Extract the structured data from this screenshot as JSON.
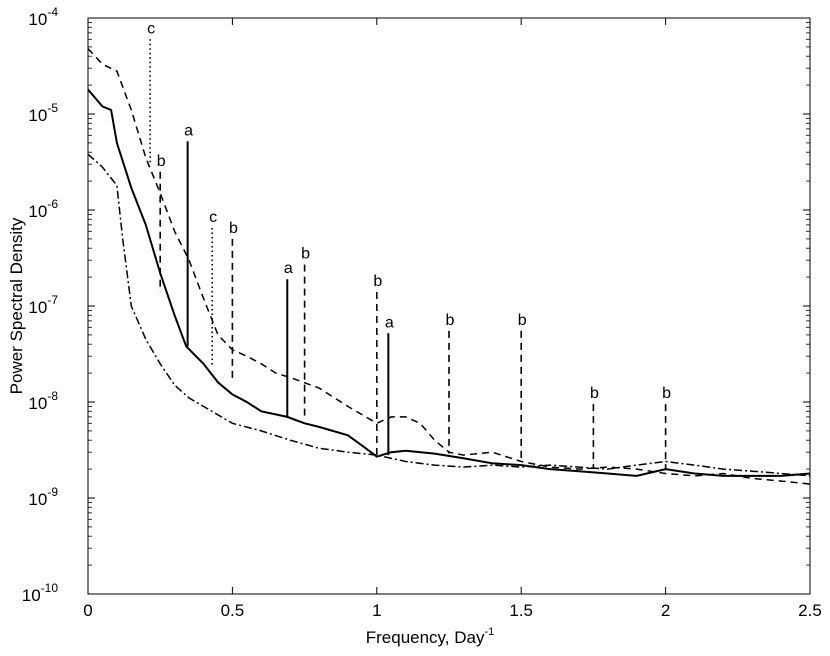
{
  "chart_data": {
    "type": "line",
    "title": "",
    "xlabel": "Frequency, Day",
    "xlabel_superscript": "-1",
    "ylabel": "Power Spectral Density",
    "xlim": [
      0,
      2.5
    ],
    "ylim_exponents": [
      -10,
      -4
    ],
    "yscale": "log",
    "grid": false,
    "x_ticks": [
      0,
      0.5,
      1,
      1.5,
      2,
      2.5
    ],
    "x_tick_labels": [
      "0",
      "0.5",
      "1",
      "1.5",
      "2",
      "2.5"
    ],
    "y_ticks": [
      -10,
      -9,
      -8,
      -7,
      -6,
      -5,
      -4
    ],
    "y_tick_base": "10",
    "y_tick_exponents": [
      "-10",
      "-9",
      "-8",
      "-7",
      "-6",
      "-5",
      "-4"
    ],
    "series": [
      {
        "name": "solid",
        "style": "solid",
        "x": [
          0,
          0.05,
          0.08,
          0.1,
          0.15,
          0.2,
          0.25,
          0.3,
          0.34,
          0.4,
          0.45,
          0.5,
          0.55,
          0.6,
          0.69,
          0.75,
          0.8,
          0.9,
          0.95,
          1.0,
          1.05,
          1.1,
          1.2,
          1.3,
          1.4,
          1.5,
          1.6,
          1.7,
          1.8,
          1.9,
          2.0,
          2.1,
          2.2,
          2.3,
          2.4,
          2.5
        ],
        "values": [
          1.8e-05,
          1.2e-05,
          1.1e-05,
          5e-06,
          1.7e-06,
          7e-07,
          2.2e-07,
          8e-08,
          3.8e-08,
          2.5e-08,
          1.6e-08,
          1.2e-08,
          1e-08,
          8e-09,
          7e-09,
          6e-09,
          5.5e-09,
          4.5e-09,
          3.5e-09,
          2.7e-09,
          3e-09,
          3.1e-09,
          2.9e-09,
          2.6e-09,
          2.3e-09,
          2.2e-09,
          2e-09,
          1.9e-09,
          1.8e-09,
          1.7e-09,
          2e-09,
          1.8e-09,
          1.7e-09,
          1.7e-09,
          1.7e-09,
          1.8e-09
        ]
      },
      {
        "name": "dashed",
        "style": "dashed",
        "x": [
          0,
          0.05,
          0.1,
          0.15,
          0.2,
          0.25,
          0.3,
          0.35,
          0.4,
          0.45,
          0.5,
          0.55,
          0.6,
          0.65,
          0.7,
          0.8,
          0.9,
          1.0,
          1.05,
          1.1,
          1.15,
          1.2,
          1.25,
          1.3,
          1.4,
          1.5,
          1.6,
          1.7,
          1.8,
          1.9,
          2.0,
          2.1,
          2.2,
          2.3,
          2.4,
          2.5
        ],
        "values": [
          4.8e-05,
          3.3e-05,
          2.8e-05,
          1.1e-05,
          3.5e-06,
          1.5e-06,
          6e-07,
          3e-07,
          1.2e-07,
          5e-08,
          3.5e-08,
          3e-08,
          2.5e-08,
          2e-08,
          1.8e-08,
          1.4e-08,
          9e-09,
          6e-09,
          7e-09,
          7e-09,
          6e-09,
          4e-09,
          3e-09,
          2.8e-09,
          3e-09,
          2.4e-09,
          2.1e-09,
          2e-09,
          2.1e-09,
          2e-09,
          1.8e-09,
          1.7e-09,
          1.8e-09,
          1.6e-09,
          1.5e-09,
          1.4e-09
        ]
      },
      {
        "name": "dash-dot",
        "style": "dashdot",
        "x": [
          0,
          0.05,
          0.1,
          0.12,
          0.15,
          0.2,
          0.25,
          0.3,
          0.35,
          0.4,
          0.5,
          0.6,
          0.7,
          0.8,
          0.9,
          1.0,
          1.1,
          1.2,
          1.3,
          1.4,
          1.5,
          1.6,
          1.7,
          1.8,
          1.9,
          2.0,
          2.1,
          2.2,
          2.3,
          2.4,
          2.5
        ],
        "values": [
          3.8e-06,
          2.8e-06,
          1.8e-06,
          5e-07,
          1e-07,
          4.5e-08,
          2.5e-08,
          1.5e-08,
          1.1e-08,
          9e-09,
          6e-09,
          5e-09,
          4e-09,
          3.3e-09,
          3e-09,
          2.8e-09,
          2.4e-09,
          2.2e-09,
          2.1e-09,
          2.2e-09,
          2.1e-09,
          2.2e-09,
          2.1e-09,
          2e-09,
          2.2e-09,
          2.4e-09,
          2.2e-09,
          2e-09,
          1.9e-09,
          1.8e-09,
          1.7e-09
        ]
      }
    ],
    "peaks": [
      {
        "label": "c",
        "x": 0.215,
        "y_top": 6e-05,
        "y_bottom": 3e-06,
        "style": "dotted"
      },
      {
        "label": "a",
        "x": 0.345,
        "y_top": 5.2e-06,
        "y_bottom": 3.8e-08,
        "style": "solid"
      },
      {
        "label": "b",
        "x": 0.25,
        "y_top": 2.5e-06,
        "y_bottom": 1.4e-07,
        "style": "dashed"
      },
      {
        "label": "c",
        "x": 0.43,
        "y_top": 6.5e-07,
        "y_bottom": 2.3e-08,
        "style": "dotted"
      },
      {
        "label": "b",
        "x": 0.5,
        "y_top": 5e-07,
        "y_bottom": 1.6e-08,
        "style": "dashed"
      },
      {
        "label": "a",
        "x": 0.69,
        "y_top": 1.9e-07,
        "y_bottom": 7e-09,
        "style": "solid"
      },
      {
        "label": "b",
        "x": 0.75,
        "y_top": 2.7e-07,
        "y_bottom": 7e-09,
        "style": "dashed"
      },
      {
        "label": "b",
        "x": 1.0,
        "y_top": 1.4e-07,
        "y_bottom": 2.7e-09,
        "style": "dashed"
      },
      {
        "label": "a",
        "x": 1.04,
        "y_top": 5.2e-08,
        "y_bottom": 2.8e-09,
        "style": "solid"
      },
      {
        "label": "b",
        "x": 1.25,
        "y_top": 5.5e-08,
        "y_bottom": 2.9e-09,
        "style": "dashed"
      },
      {
        "label": "b",
        "x": 1.5,
        "y_top": 5.5e-08,
        "y_bottom": 2.4e-09,
        "style": "dashed"
      },
      {
        "label": "b",
        "x": 1.75,
        "y_top": 9.5e-09,
        "y_bottom": 2e-09,
        "style": "dashed"
      },
      {
        "label": "b",
        "x": 2.0,
        "y_top": 9.5e-09,
        "y_bottom": 2e-09,
        "style": "dashed"
      }
    ]
  }
}
